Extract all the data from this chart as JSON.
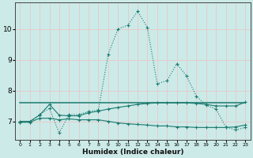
{
  "xlabel": "Humidex (Indice chaleur)",
  "background_color": "#cceae8",
  "grid_color": "#e8c8c8",
  "line_color": "#1a7a6e",
  "xlim": [
    -0.5,
    23.5
  ],
  "ylim": [
    6.4,
    10.85
  ],
  "yticks": [
    7,
    8,
    9,
    10
  ],
  "xticks": [
    0,
    1,
    2,
    3,
    4,
    5,
    6,
    7,
    8,
    9,
    10,
    11,
    12,
    13,
    14,
    15,
    16,
    17,
    18,
    19,
    20,
    21,
    22,
    23
  ],
  "series1_x": [
    0,
    1,
    2,
    3,
    4,
    5,
    6,
    7,
    8,
    9,
    10,
    11,
    12,
    13,
    14,
    15,
    16,
    17,
    18,
    19,
    20,
    21,
    22,
    23
  ],
  "series1_y": [
    6.97,
    6.97,
    7.22,
    7.42,
    6.62,
    7.22,
    7.22,
    7.32,
    7.37,
    9.18,
    10.0,
    10.12,
    10.57,
    10.05,
    8.22,
    8.32,
    8.87,
    8.47,
    7.82,
    7.52,
    7.4,
    6.82,
    6.72,
    6.8
  ],
  "series2_x": [
    0,
    1,
    2,
    3,
    4,
    5,
    6,
    7,
    8,
    9,
    10,
    11,
    12,
    13,
    14,
    15,
    16,
    17,
    18,
    19,
    20,
    21,
    22,
    23
  ],
  "series2_y": [
    7.0,
    7.0,
    7.2,
    7.55,
    7.2,
    7.18,
    7.18,
    7.28,
    7.33,
    7.4,
    7.45,
    7.5,
    7.55,
    7.58,
    7.6,
    7.6,
    7.6,
    7.6,
    7.58,
    7.55,
    7.5,
    7.5,
    7.5,
    7.62
  ],
  "series3_x": [
    0,
    23
  ],
  "series3_y": [
    7.6,
    7.6
  ],
  "series4_x": [
    0,
    1,
    2,
    3,
    4,
    5,
    6,
    7,
    8,
    9,
    10,
    11,
    12,
    13,
    14,
    15,
    16,
    17,
    18,
    19,
    20,
    21,
    22,
    23
  ],
  "series4_y": [
    6.97,
    6.97,
    7.1,
    7.1,
    7.05,
    7.08,
    7.05,
    7.05,
    7.05,
    7.0,
    6.95,
    6.92,
    6.9,
    6.88,
    6.85,
    6.85,
    6.82,
    6.82,
    6.8,
    6.8,
    6.8,
    6.8,
    6.82,
    6.88
  ]
}
